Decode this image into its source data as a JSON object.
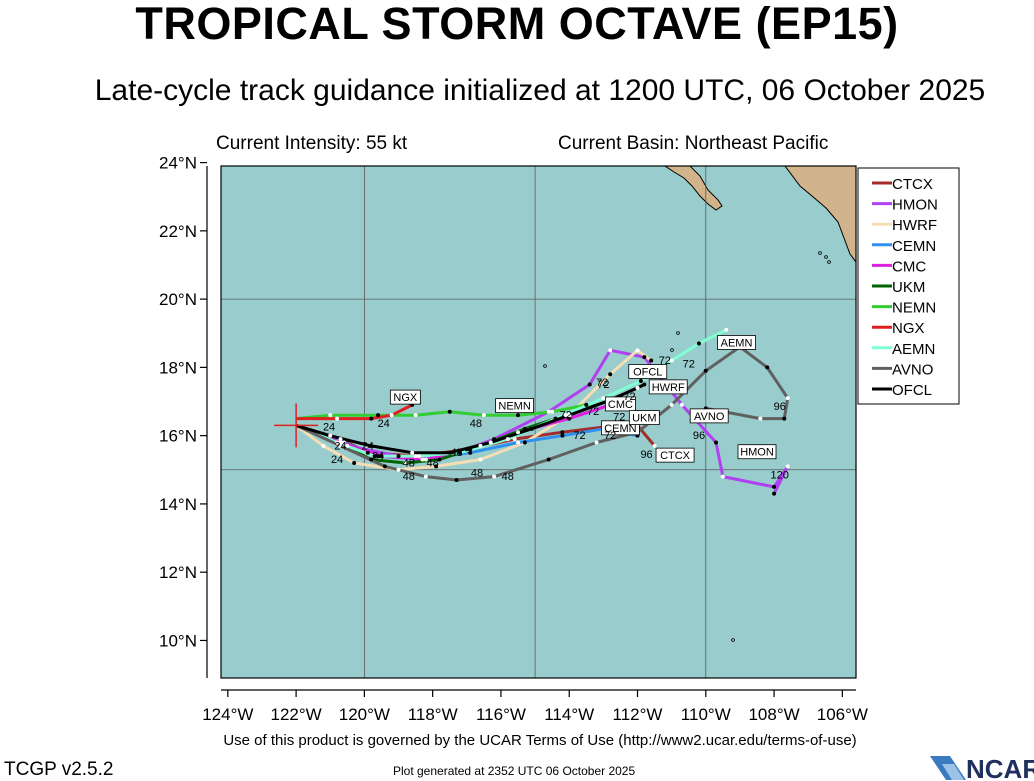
{
  "header": {
    "title": "TROPICAL STORM OCTAVE (EP15)",
    "subtitle": "Late-cycle track guidance initialized at 1200 UTC, 06 October 2025",
    "current_intensity": "Current Intensity: 55 kt",
    "current_basin": "Current Basin: Northeast Pacific"
  },
  "footer": {
    "terms": "Use of this product is governed by the UCAR Terms of Use (http://www2.ucar.edu/terms-of-use)",
    "version": "TCGP v2.5.2",
    "generated": "Plot generated at 2352 UTC   06 October 2025",
    "logo_text": "NCAR"
  },
  "colors": {
    "ocean": "#99cccc",
    "land": "#d2b48c",
    "grid": "#5a5a5a"
  },
  "chart_data": {
    "type": "line",
    "xlim": [
      -124.2,
      -105.6
    ],
    "ylim": [
      8.9,
      23.9
    ],
    "x_ticks": [
      {
        "v": -124,
        "label": "124°W"
      },
      {
        "v": -122,
        "label": "122°W"
      },
      {
        "v": -120,
        "label": "120°W"
      },
      {
        "v": -118,
        "label": "118°W"
      },
      {
        "v": -116,
        "label": "116°W"
      },
      {
        "v": -114,
        "label": "114°W"
      },
      {
        "v": -112,
        "label": "112°W"
      },
      {
        "v": -110,
        "label": "110°W"
      },
      {
        "v": -108,
        "label": "108°W"
      },
      {
        "v": -106,
        "label": "106°W"
      }
    ],
    "y_ticks": [
      {
        "v": 10,
        "label": "10°N"
      },
      {
        "v": 12,
        "label": "12°N"
      },
      {
        "v": 14,
        "label": "14°N"
      },
      {
        "v": 16,
        "label": "16°N"
      },
      {
        "v": 18,
        "label": "18°N"
      },
      {
        "v": 20,
        "label": "20°N"
      },
      {
        "v": 22,
        "label": "22°N"
      },
      {
        "v": 24,
        "label": "24°N"
      }
    ],
    "grid_lon": [
      -120,
      -115,
      -110
    ],
    "grid_lat": [
      15,
      20
    ],
    "storm_position": {
      "lon": -122.0,
      "lat": 16.3
    },
    "legend_position": "right",
    "series": [
      {
        "name": "CTCX",
        "color": "#a52a2a",
        "track": [
          [
            -122.0,
            16.3
          ],
          [
            -120.7,
            15.9
          ],
          [
            -119.9,
            15.5
          ],
          [
            -118.4,
            15.4
          ],
          [
            -117.0,
            15.6
          ],
          [
            -115.6,
            15.9
          ],
          [
            -114.2,
            16.1
          ],
          [
            -112.6,
            16.3
          ],
          [
            -112.0,
            16.3
          ],
          [
            -111.5,
            15.7
          ]
        ],
        "tau_labels": [
          {
            "i": 9,
            "text": "96"
          }
        ],
        "box": {
          "text": "CTCX",
          "lon": -110.9,
          "lat": 15.4
        }
      },
      {
        "name": "HMON",
        "color": "#b040f0",
        "track": [
          [
            -122.0,
            16.3
          ],
          [
            -120.5,
            15.7
          ],
          [
            -119.0,
            15.4
          ],
          [
            -117.8,
            15.3
          ],
          [
            -116.2,
            15.9
          ],
          [
            -114.6,
            16.7
          ],
          [
            -113.4,
            17.5
          ],
          [
            -112.8,
            18.5
          ],
          [
            -111.8,
            18.3
          ],
          [
            -110.7,
            16.9
          ],
          [
            -109.7,
            15.8
          ],
          [
            -109.5,
            14.8
          ],
          [
            -108.0,
            14.5
          ],
          [
            -107.6,
            15.1
          ],
          [
            -108.0,
            14.3
          ]
        ],
        "tau_labels": [
          {
            "i": 13,
            "text": "120"
          }
        ],
        "box": {
          "text": "HMON",
          "lon": -108.5,
          "lat": 15.5
        }
      },
      {
        "name": "HWRF",
        "color": "#f5deb3",
        "track": [
          [
            -122.0,
            16.3
          ],
          [
            -121.2,
            15.7
          ],
          [
            -120.3,
            15.2
          ],
          [
            -119.0,
            15.0
          ],
          [
            -117.9,
            15.1
          ],
          [
            -116.6,
            15.3
          ],
          [
            -115.3,
            15.8
          ],
          [
            -114.0,
            16.6
          ],
          [
            -112.8,
            17.8
          ],
          [
            -112.0,
            18.5
          ],
          [
            -111.6,
            18.2
          ]
        ],
        "tau_labels": [
          {
            "i": 8,
            "text": "72"
          },
          {
            "i": 10,
            "text": "96"
          }
        ],
        "box": {
          "text": "HWRF",
          "lon": -111.1,
          "lat": 17.4
        }
      },
      {
        "name": "CEMN",
        "color": "#3090f0",
        "track": [
          [
            -122.0,
            16.3
          ],
          [
            -120.6,
            15.8
          ],
          [
            -119.6,
            15.4
          ],
          [
            -118.3,
            15.3
          ],
          [
            -116.9,
            15.5
          ],
          [
            -115.5,
            15.8
          ],
          [
            -114.2,
            16.0
          ],
          [
            -113.0,
            16.2
          ],
          [
            -112.0,
            16.0
          ]
        ],
        "tau_labels": [],
        "box": {
          "text": "CEMN",
          "lon": -112.5,
          "lat": 16.2
        }
      },
      {
        "name": "CMC",
        "color": "#e020e0",
        "track": [
          [
            -122.0,
            16.3
          ],
          [
            -120.7,
            15.8
          ],
          [
            -119.5,
            15.4
          ],
          [
            -118.2,
            15.3
          ],
          [
            -116.9,
            15.6
          ],
          [
            -115.5,
            16.1
          ],
          [
            -114.0,
            16.5
          ],
          [
            -112.8,
            16.9
          ],
          [
            -112.3,
            16.8
          ]
        ],
        "tau_labels": [
          {
            "i": 8,
            "text": "72"
          }
        ],
        "box": {
          "text": "CMC",
          "lon": -112.5,
          "lat": 16.9
        }
      },
      {
        "name": "UKM",
        "color": "#006400",
        "track": [
          [
            -122.0,
            16.3
          ],
          [
            -120.8,
            15.8
          ],
          [
            -119.8,
            15.3
          ],
          [
            -118.8,
            15.2
          ],
          [
            -117.8,
            15.3
          ],
          [
            -116.6,
            15.7
          ],
          [
            -115.3,
            16.2
          ],
          [
            -114.1,
            16.6
          ],
          [
            -112.9,
            17.0
          ]
        ],
        "tau_labels": [],
        "box": {
          "text": "UKM",
          "lon": -111.8,
          "lat": 16.5
        }
      },
      {
        "name": "NEMN",
        "color": "#32cd32",
        "track": [
          [
            -122.0,
            16.5
          ],
          [
            -121.0,
            16.6
          ],
          [
            -119.6,
            16.6
          ],
          [
            -118.5,
            16.6
          ],
          [
            -117.5,
            16.7
          ],
          [
            -116.5,
            16.6
          ],
          [
            -115.5,
            16.6
          ],
          [
            -114.5,
            16.7
          ],
          [
            -113.5,
            16.9
          ]
        ],
        "tau_labels": [
          {
            "i": 5,
            "text": "48"
          }
        ],
        "box": {
          "text": "NEMN",
          "lon": -115.6,
          "lat": 16.85
        }
      },
      {
        "name": "NGX",
        "color": "#e02020",
        "track": [
          [
            -122.0,
            16.5
          ],
          [
            -120.8,
            16.5
          ],
          [
            -119.8,
            16.5
          ],
          [
            -119.2,
            16.6
          ],
          [
            -118.6,
            16.9
          ]
        ],
        "tau_labels": [
          {
            "i": 1,
            "text": "24"
          },
          {
            "i": 3,
            "text": "24"
          }
        ],
        "box": {
          "text": "NGX",
          "lon": -118.8,
          "lat": 17.1
        }
      },
      {
        "name": "AEMN",
        "color": "#7fffd4",
        "track": [
          [
            -122.0,
            16.3
          ],
          [
            -120.8,
            15.8
          ],
          [
            -119.7,
            15.4
          ],
          [
            -118.5,
            15.4
          ],
          [
            -117.2,
            15.5
          ],
          [
            -115.8,
            15.9
          ],
          [
            -114.4,
            16.5
          ],
          [
            -113.0,
            17.1
          ],
          [
            -111.9,
            17.6
          ],
          [
            -111.0,
            18.2
          ],
          [
            -110.2,
            18.7
          ],
          [
            -109.4,
            19.1
          ]
        ],
        "tau_labels": [],
        "box": {
          "text": "AEMN",
          "lon": -109.1,
          "lat": 18.7
        }
      },
      {
        "name": "AVNO",
        "color": "#606060",
        "track": [
          [
            -122.0,
            16.3
          ],
          [
            -120.7,
            15.7
          ],
          [
            -119.4,
            15.1
          ],
          [
            -118.2,
            14.8
          ],
          [
            -117.3,
            14.7
          ],
          [
            -116.2,
            14.8
          ],
          [
            -114.6,
            15.3
          ],
          [
            -113.2,
            15.8
          ],
          [
            -112.0,
            16.1
          ],
          [
            -111.0,
            16.9
          ],
          [
            -110.0,
            17.9
          ],
          [
            -109.0,
            18.6
          ],
          [
            -108.2,
            18.0
          ],
          [
            -107.6,
            17.1
          ],
          [
            -107.7,
            16.5
          ],
          [
            -108.4,
            16.5
          ],
          [
            -110.0,
            16.8
          ]
        ],
        "tau_labels": [
          {
            "i": 13,
            "text": "96"
          },
          {
            "i": 16,
            "text": "120"
          }
        ],
        "box": {
          "text": "AVNO",
          "lon": -109.9,
          "lat": 16.55
        }
      },
      {
        "name": "OFCL",
        "color": "#000000",
        "track": [
          [
            -122.0,
            16.3
          ],
          [
            -121.0,
            16.0
          ],
          [
            -119.8,
            15.7
          ],
          [
            -118.6,
            15.5
          ],
          [
            -117.5,
            15.5
          ],
          [
            -116.3,
            15.8
          ],
          [
            -115.1,
            16.2
          ],
          [
            -114.0,
            16.6
          ],
          [
            -112.9,
            17.0
          ],
          [
            -112.0,
            17.4
          ],
          [
            -111.8,
            17.5
          ]
        ],
        "tau_labels": [
          {
            "i": 9,
            "text": "72"
          }
        ],
        "box": {
          "text": "OFCL",
          "lon": -111.7,
          "lat": 17.85
        }
      }
    ],
    "extra_tau_labels": [
      {
        "text": "24",
        "lon": -120.8,
        "lat": 15.2
      },
      {
        "text": "24",
        "lon": -119.6,
        "lat": 15.3
      },
      {
        "text": "24",
        "lon": -120.7,
        "lat": 15.6
      },
      {
        "text": "24",
        "lon": -119.9,
        "lat": 15.6
      },
      {
        "text": "48",
        "lon": -118.7,
        "lat": 14.7
      },
      {
        "text": "48",
        "lon": -118.7,
        "lat": 15.1
      },
      {
        "text": "48",
        "lon": -118.0,
        "lat": 15.1
      },
      {
        "text": "48",
        "lon": -116.7,
        "lat": 14.8
      },
      {
        "text": "48",
        "lon": -115.8,
        "lat": 14.7
      },
      {
        "text": "48",
        "lon": -117.3,
        "lat": 15.4
      },
      {
        "text": "72",
        "lon": -113.0,
        "lat": 17.4
      },
      {
        "text": "72",
        "lon": -114.1,
        "lat": 16.5
      },
      {
        "text": "72",
        "lon": -113.3,
        "lat": 16.6
      },
      {
        "text": "72",
        "lon": -113.7,
        "lat": 15.9
      },
      {
        "text": "72",
        "lon": -112.8,
        "lat": 15.9
      },
      {
        "text": "72",
        "lon": -111.2,
        "lat": 18.1
      },
      {
        "text": "72",
        "lon": -110.5,
        "lat": 18.0
      },
      {
        "text": "96",
        "lon": -110.2,
        "lat": 15.9
      }
    ]
  }
}
